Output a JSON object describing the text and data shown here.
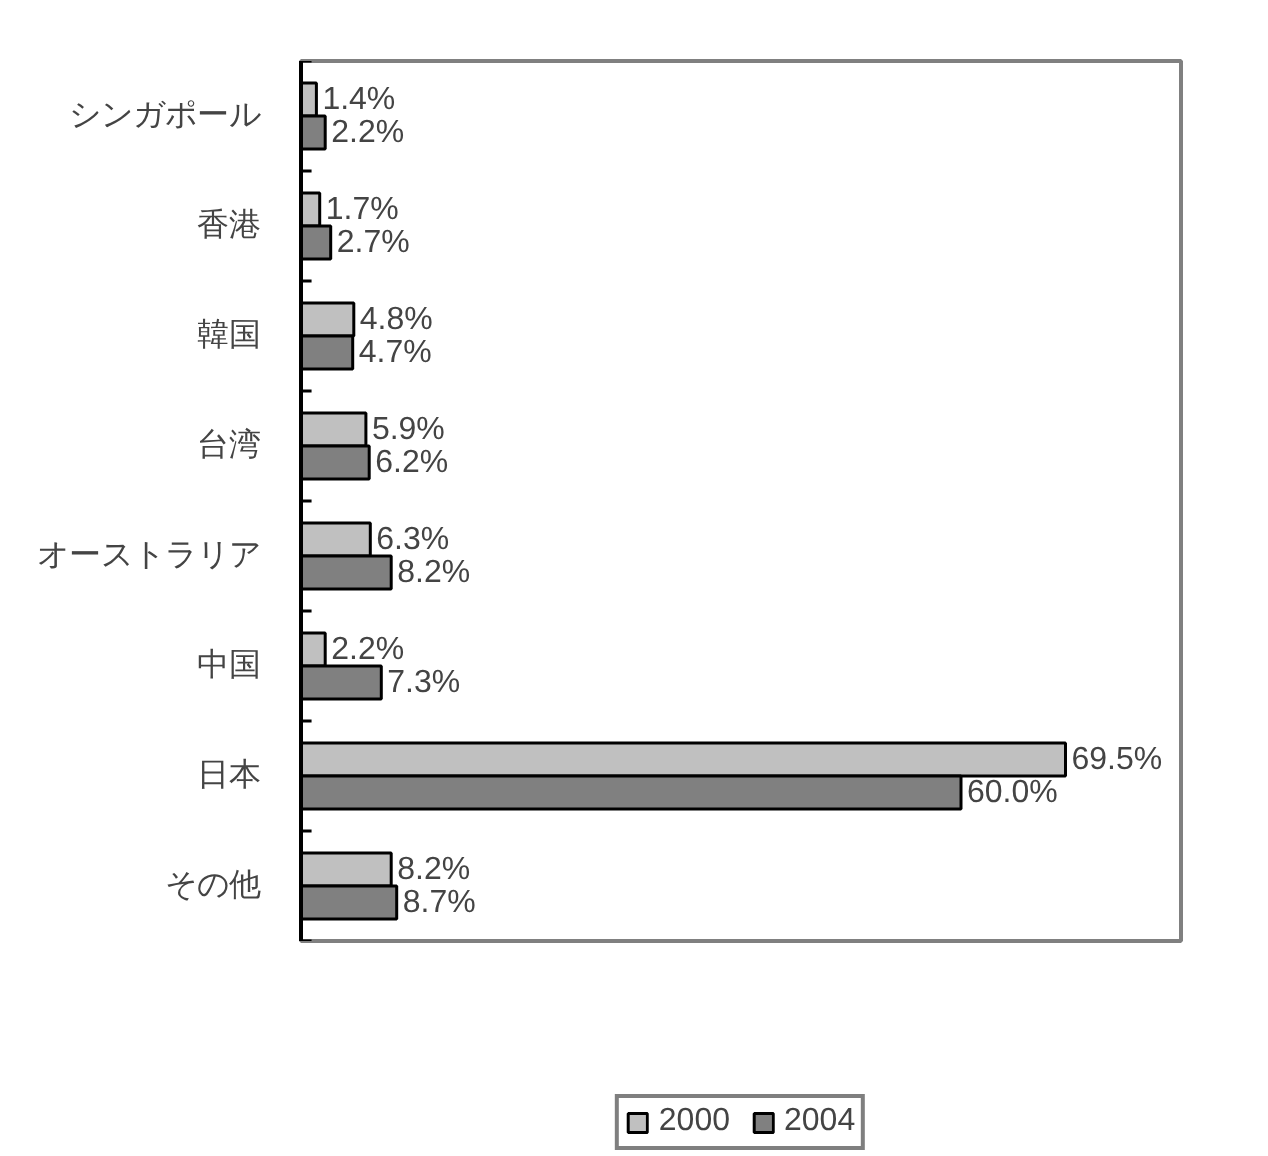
{
  "chart_data": {
    "type": "bar",
    "orientation": "horizontal",
    "categories": [
      "シンガポール",
      "香港",
      "韓国",
      "台湾",
      "オーストラリア",
      "中国",
      "日本",
      "その他"
    ],
    "series": [
      {
        "name": "2000",
        "color": "#c0c0c0",
        "values": [
          1.4,
          1.7,
          4.8,
          5.9,
          6.3,
          2.2,
          69.5,
          8.2
        ],
        "value_labels": [
          "1.4%",
          "1.7%",
          "4.8%",
          "5.9%",
          "6.3%",
          "2.2%",
          "69.5%",
          "8.2%"
        ]
      },
      {
        "name": "2004",
        "color": "#808080",
        "values": [
          2.2,
          2.7,
          4.7,
          6.2,
          8.2,
          7.3,
          60.0,
          8.7
        ],
        "value_labels": [
          "2.2%",
          "2.7%",
          "4.7%",
          "6.2%",
          "8.2%",
          "7.3%",
          "60.0%",
          "8.7%"
        ]
      }
    ],
    "xlim": [
      0,
      80
    ],
    "tick_labels": "y",
    "grid": false,
    "legend": "bottom"
  }
}
